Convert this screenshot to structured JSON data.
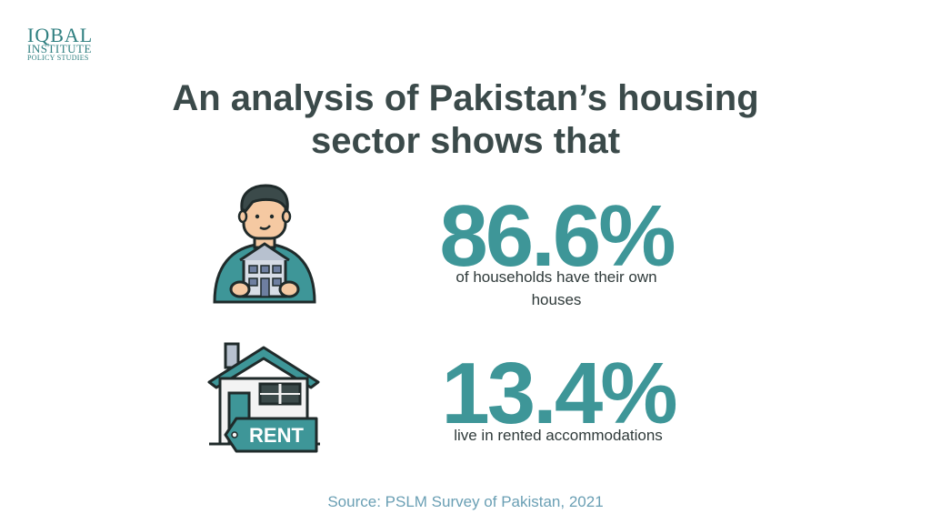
{
  "logo": {
    "line1": "IQBAL",
    "line2": "INSTITUTE",
    "line3": "POLICY STUDIES"
  },
  "title": {
    "line1": "An analysis of Pakistan’s housing",
    "line2": "sector shows that"
  },
  "stats": [
    {
      "value": "86.6%",
      "description_line1": "of households have their own",
      "description_line2": "houses",
      "icon": "person-holding-house-icon"
    },
    {
      "value": "13.4%",
      "description_line1": "live in rented accommodations",
      "icon": "rent-house-icon",
      "sign_text": "RENT"
    }
  ],
  "source": "Source: PSLM Survey of Pakistan, 2021",
  "colors": {
    "accent": "#3e9698",
    "title": "#3b4a4a",
    "source": "#6a9fb4",
    "logo": "#2f7f80"
  }
}
